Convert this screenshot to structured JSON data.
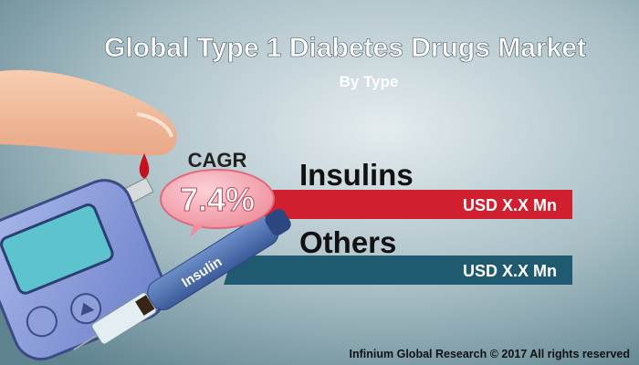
{
  "header": {
    "title": "Global Type 1 Diabetes Drugs Market",
    "subtitle": "By Type"
  },
  "cagr": {
    "label": "CAGR",
    "value": "7.4%"
  },
  "bars": [
    {
      "label": "Insulins",
      "value_label": "USD X.X Mn"
    },
    {
      "label": "Others",
      "value_label": "USD X.X Mn"
    }
  ],
  "pen_label": "Insulin",
  "footer": "Infinium Global Research © 2017 All rights reserved"
}
